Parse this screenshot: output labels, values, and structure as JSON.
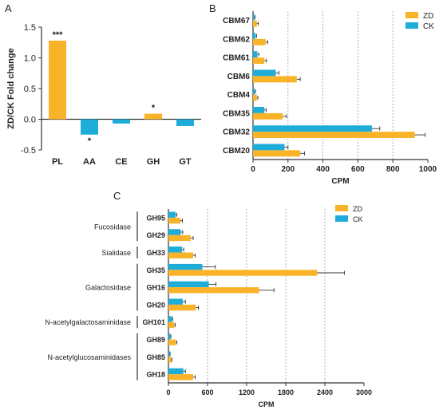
{
  "panels": {
    "a_label": "A",
    "b_label": "B",
    "c_label": "C"
  },
  "colors": {
    "zd": "#F9B328",
    "ck": "#1EADD8",
    "axis": "#333333",
    "grid": "#999999",
    "group_text": "#666666"
  },
  "chart_data": [
    {
      "panel": "A",
      "type": "bar",
      "ylabel": "ZD/CK Fold change",
      "xlabel": "",
      "ylim": [
        -0.5,
        1.5
      ],
      "yticks": [
        -0.5,
        0.0,
        0.5,
        1.0,
        1.5
      ],
      "ytick_labels": [
        "-0.5",
        "0.0",
        "0.5",
        "1.0",
        "1.5"
      ],
      "categories": [
        "PL",
        "AA",
        "CE",
        "GH",
        "GT"
      ],
      "values": [
        1.28,
        -0.25,
        -0.07,
        0.09,
        -0.11
      ],
      "bar_colors": [
        "#F9B328",
        "#1EADD8",
        "#1EADD8",
        "#F9B328",
        "#1EADD8"
      ],
      "significance": [
        "***",
        "*",
        "",
        "*",
        ""
      ]
    },
    {
      "panel": "B",
      "type": "bar",
      "orientation": "horizontal",
      "xlabel": "CPM",
      "xlim": [
        0,
        1000
      ],
      "xticks": [
        0,
        200,
        400,
        600,
        800,
        1000
      ],
      "xtick_labels": [
        "0",
        "200",
        "400",
        "600",
        "800",
        "1000"
      ],
      "grid": "vertical dashed at 200, 400, 600, 800",
      "legend_position": "top-right",
      "categories": [
        "CBM67",
        "CBM62",
        "CBM61",
        "CBM6",
        "CBM4",
        "CBM35",
        "CBM32",
        "CBM20"
      ],
      "series": [
        {
          "name": "ZD",
          "color": "#F9B328",
          "values": [
            22,
            72,
            65,
            250,
            22,
            170,
            925,
            270
          ],
          "errors": [
            8,
            12,
            12,
            20,
            6,
            22,
            60,
            25
          ]
        },
        {
          "name": "CK",
          "color": "#1EADD8",
          "values": [
            8,
            14,
            25,
            130,
            10,
            65,
            680,
            180
          ],
          "errors": [
            4,
            6,
            8,
            18,
            4,
            10,
            45,
            20
          ]
        }
      ]
    },
    {
      "panel": "C",
      "type": "bar",
      "orientation": "horizontal",
      "xlabel": "CPM",
      "xlim": [
        0,
        3000
      ],
      "xticks": [
        0,
        600,
        1200,
        1800,
        2400,
        3000
      ],
      "xtick_labels": [
        "0",
        "600",
        "1200",
        "1800",
        "2400",
        "3000"
      ],
      "grid": "vertical dashed at 600, 1200, 1800, 2400",
      "legend_position": "top-right",
      "categories": [
        "GH95",
        "GH29",
        "GH33",
        "GH35",
        "GH16",
        "GH20",
        "GH101",
        "GH89",
        "GH85",
        "GH18"
      ],
      "groups": [
        {
          "label": "Fucosidase",
          "members": [
            "GH95",
            "GH29"
          ]
        },
        {
          "label": "Sialidase",
          "members": [
            "GH33"
          ]
        },
        {
          "label": "Galactosidase",
          "members": [
            "GH35",
            "GH16",
            "GH20"
          ]
        },
        {
          "label": "N-acetylgalactosaminidase",
          "members": [
            "GH101"
          ]
        },
        {
          "label": "N-acetylglucosaminidases",
          "members": [
            "GH89",
            "GH85",
            "GH18"
          ]
        }
      ],
      "series": [
        {
          "name": "ZD",
          "color": "#F9B328",
          "values": [
            185,
            340,
            380,
            2280,
            1390,
            420,
            90,
            110,
            45,
            380
          ],
          "errors": [
            30,
            40,
            30,
            420,
            230,
            40,
            15,
            20,
            10,
            30
          ]
        },
        {
          "name": "CK",
          "color": "#1EADD8",
          "values": [
            110,
            190,
            210,
            520,
            620,
            220,
            55,
            30,
            20,
            230
          ],
          "errors": [
            20,
            30,
            25,
            200,
            110,
            40,
            10,
            8,
            6,
            30
          ]
        }
      ]
    }
  ]
}
